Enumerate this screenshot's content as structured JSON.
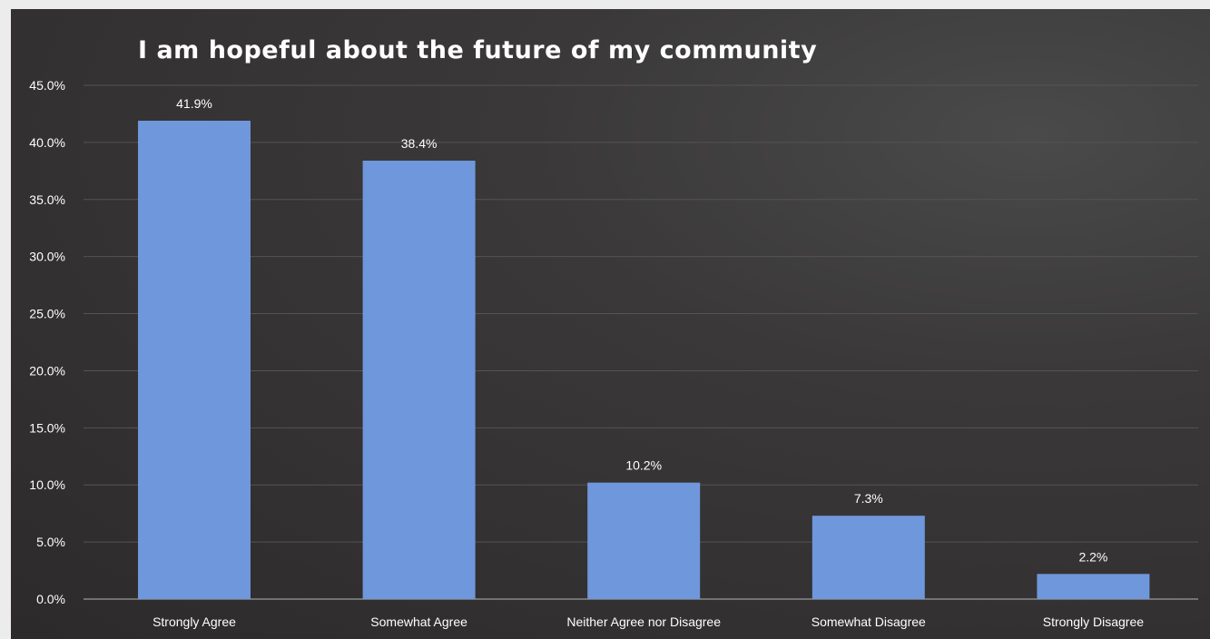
{
  "chart_data": {
    "type": "bar",
    "title": "I am hopeful about the future of my community",
    "categories": [
      "Strongly Agree",
      "Somewhat Agree",
      "Neither Agree nor Disagree",
      "Somewhat Disagree",
      "Strongly Disagree"
    ],
    "values": [
      41.9,
      38.4,
      10.2,
      7.3,
      2.2
    ],
    "data_labels": [
      "41.9%",
      "38.4%",
      "10.2%",
      "7.3%",
      "2.2%"
    ],
    "y_ticks": [
      0,
      5,
      10,
      15,
      20,
      25,
      30,
      35,
      40,
      45
    ],
    "y_tick_labels": [
      "0.0%",
      "5.0%",
      "10.0%",
      "15.0%",
      "20.0%",
      "25.0%",
      "30.0%",
      "35.0%",
      "40.0%",
      "45.0%"
    ],
    "ylim": [
      0,
      45
    ],
    "xlabel": "",
    "ylabel": "",
    "grid": true,
    "legend": "none",
    "colors": {
      "bar": "#6f97dc",
      "background": "#333131",
      "grid": "#555353",
      "text": "#ffffff"
    }
  }
}
